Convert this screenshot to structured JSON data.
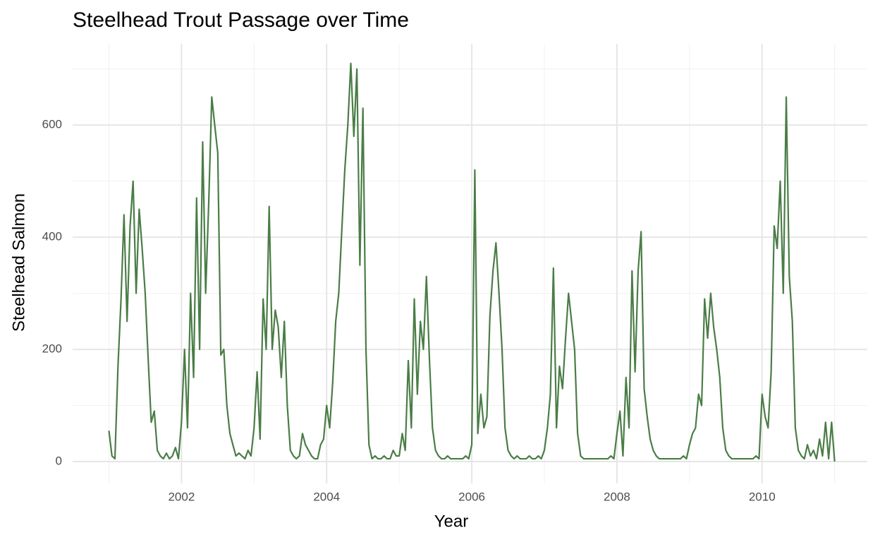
{
  "chart_data": {
    "type": "line",
    "title": "Steelhead Trout Passage over Time",
    "x_label": "Year",
    "y_label": "Steelhead Salmon",
    "color": "#4a7d46",
    "xlim": [
      2000.5,
      2011.45
    ],
    "xticks": [
      2002,
      2004,
      2006,
      2008,
      2010
    ],
    "x_minor_ticks": [
      2001,
      2003,
      2005,
      2007,
      2009,
      2011
    ],
    "ylim": [
      -39,
      745
    ],
    "yticks": [
      0,
      200,
      400,
      600
    ],
    "y_minor_ticks": [
      100,
      300,
      500,
      700
    ],
    "grid": true,
    "x": [
      2001,
      2001.042,
      2001.083,
      2001.125,
      2001.167,
      2001.208,
      2001.25,
      2001.292,
      2001.333,
      2001.375,
      2001.417,
      2001.458,
      2001.5,
      2001.542,
      2001.583,
      2001.625,
      2001.667,
      2001.708,
      2001.75,
      2001.792,
      2001.833,
      2001.875,
      2001.917,
      2001.958,
      2002,
      2002.042,
      2002.083,
      2002.125,
      2002.167,
      2002.208,
      2002.25,
      2002.292,
      2002.333,
      2002.375,
      2002.417,
      2002.458,
      2002.5,
      2002.542,
      2002.583,
      2002.625,
      2002.667,
      2002.708,
      2002.75,
      2002.792,
      2002.833,
      2002.875,
      2002.917,
      2002.958,
      2003,
      2003.042,
      2003.083,
      2003.125,
      2003.167,
      2003.208,
      2003.25,
      2003.292,
      2003.333,
      2003.375,
      2003.417,
      2003.458,
      2003.5,
      2003.542,
      2003.583,
      2003.625,
      2003.667,
      2003.708,
      2003.75,
      2003.792,
      2003.833,
      2003.875,
      2003.917,
      2003.958,
      2004,
      2004.042,
      2004.083,
      2004.125,
      2004.167,
      2004.208,
      2004.25,
      2004.292,
      2004.333,
      2004.375,
      2004.417,
      2004.458,
      2004.5,
      2004.542,
      2004.583,
      2004.625,
      2004.667,
      2004.708,
      2004.75,
      2004.792,
      2004.833,
      2004.875,
      2004.917,
      2004.958,
      2005,
      2005.042,
      2005.083,
      2005.125,
      2005.167,
      2005.208,
      2005.25,
      2005.292,
      2005.333,
      2005.375,
      2005.417,
      2005.458,
      2005.5,
      2005.542,
      2005.583,
      2005.625,
      2005.667,
      2005.708,
      2005.75,
      2005.792,
      2005.833,
      2005.875,
      2005.917,
      2005.958,
      2006,
      2006.042,
      2006.083,
      2006.125,
      2006.167,
      2006.208,
      2006.25,
      2006.292,
      2006.333,
      2006.375,
      2006.417,
      2006.458,
      2006.5,
      2006.542,
      2006.583,
      2006.625,
      2006.667,
      2006.708,
      2006.75,
      2006.792,
      2006.833,
      2006.875,
      2006.917,
      2006.958,
      2007,
      2007.042,
      2007.083,
      2007.125,
      2007.167,
      2007.208,
      2007.25,
      2007.292,
      2007.333,
      2007.375,
      2007.417,
      2007.458,
      2007.5,
      2007.542,
      2007.583,
      2007.625,
      2007.667,
      2007.708,
      2007.75,
      2007.792,
      2007.833,
      2007.875,
      2007.917,
      2007.958,
      2008,
      2008.042,
      2008.083,
      2008.125,
      2008.167,
      2008.208,
      2008.25,
      2008.292,
      2008.333,
      2008.375,
      2008.417,
      2008.458,
      2008.5,
      2008.542,
      2008.583,
      2008.625,
      2008.667,
      2008.708,
      2008.75,
      2008.792,
      2008.833,
      2008.875,
      2008.917,
      2008.958,
      2009,
      2009.042,
      2009.083,
      2009.125,
      2009.167,
      2009.208,
      2009.25,
      2009.292,
      2009.333,
      2009.375,
      2009.417,
      2009.458,
      2009.5,
      2009.542,
      2009.583,
      2009.625,
      2009.667,
      2009.708,
      2009.75,
      2009.792,
      2009.833,
      2009.875,
      2009.917,
      2009.958,
      2010,
      2010.042,
      2010.083,
      2010.125,
      2010.167,
      2010.208,
      2010.25,
      2010.292,
      2010.333,
      2010.375,
      2010.417,
      2010.458,
      2010.5,
      2010.542,
      2010.583,
      2010.625,
      2010.667,
      2010.708,
      2010.75,
      2010.792,
      2010.833,
      2010.875,
      2010.917,
      2010.958,
      2011
    ],
    "values": [
      55,
      10,
      5,
      170,
      290,
      440,
      250,
      420,
      500,
      300,
      450,
      380,
      300,
      180,
      70,
      90,
      20,
      10,
      5,
      15,
      5,
      10,
      25,
      5,
      70,
      200,
      60,
      300,
      150,
      470,
      200,
      570,
      300,
      460,
      650,
      600,
      550,
      190,
      200,
      100,
      50,
      30,
      10,
      15,
      10,
      5,
      20,
      10,
      60,
      160,
      40,
      290,
      200,
      455,
      200,
      270,
      240,
      150,
      250,
      100,
      20,
      10,
      5,
      10,
      50,
      30,
      20,
      10,
      5,
      5,
      30,
      40,
      100,
      60,
      140,
      250,
      300,
      410,
      520,
      600,
      710,
      580,
      700,
      350,
      630,
      200,
      30,
      5,
      10,
      5,
      5,
      10,
      5,
      5,
      20,
      10,
      10,
      50,
      20,
      180,
      60,
      290,
      120,
      250,
      200,
      330,
      180,
      60,
      20,
      10,
      5,
      5,
      10,
      5,
      5,
      5,
      5,
      5,
      10,
      5,
      30,
      520,
      50,
      120,
      60,
      80,
      260,
      340,
      390,
      300,
      200,
      60,
      20,
      10,
      5,
      10,
      5,
      5,
      5,
      10,
      5,
      5,
      10,
      5,
      20,
      60,
      120,
      345,
      60,
      170,
      130,
      220,
      300,
      250,
      200,
      50,
      10,
      5,
      5,
      5,
      5,
      5,
      5,
      5,
      5,
      5,
      10,
      5,
      50,
      90,
      10,
      150,
      60,
      340,
      160,
      340,
      410,
      130,
      80,
      40,
      20,
      10,
      5,
      5,
      5,
      5,
      5,
      5,
      5,
      5,
      10,
      5,
      30,
      50,
      60,
      120,
      100,
      290,
      220,
      300,
      240,
      200,
      150,
      60,
      20,
      10,
      5,
      5,
      5,
      5,
      5,
      5,
      5,
      5,
      10,
      5,
      120,
      80,
      60,
      160,
      420,
      380,
      500,
      300,
      650,
      330,
      250,
      60,
      20,
      10,
      5,
      30,
      10,
      20,
      5,
      40,
      10,
      70,
      5,
      70,
      0
    ]
  }
}
